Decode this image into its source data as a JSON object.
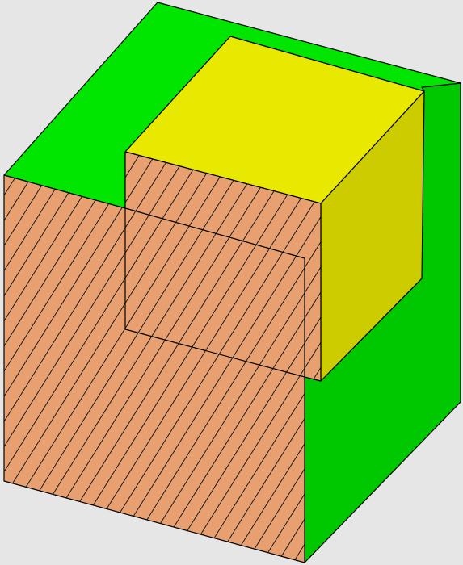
{
  "scene": {
    "description_visible_text": "",
    "colors": {
      "background": "#e6e6e6",
      "outer_top_green": "#00e600",
      "outer_right_green": "#00c800",
      "inner_top_yellow": "#e8e800",
      "inner_side_yellow": "#cccc00",
      "section_fill": "#e8a070",
      "hatch_line": "#1a1a1a",
      "edge": "#000000"
    },
    "objects": [
      {
        "name": "outer-block",
        "material_color": "green"
      },
      {
        "name": "inner-block",
        "material_color": "yellow"
      },
      {
        "name": "section-cut",
        "pattern": "diagonal-hatch"
      }
    ]
  }
}
